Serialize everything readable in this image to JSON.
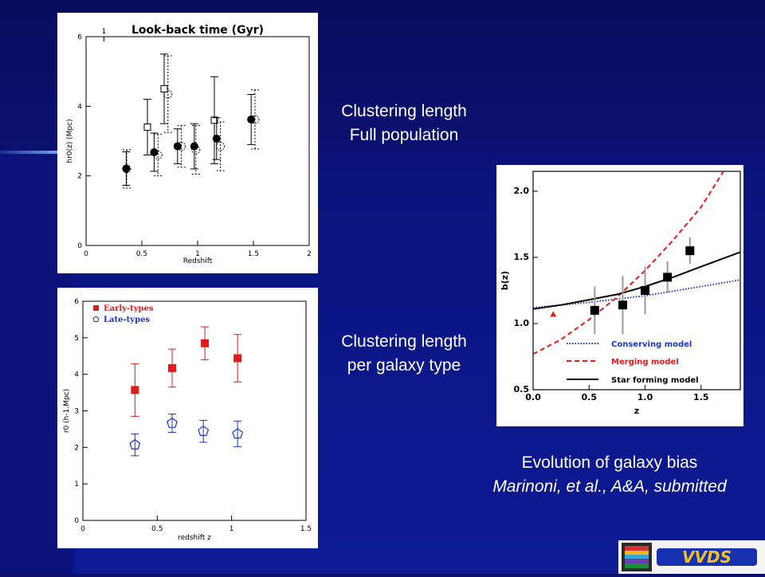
{
  "captions": {
    "full_line1": "Clustering length",
    "full_line2": "Full population",
    "type_line1": "Clustering length",
    "type_line2": "per galaxy type",
    "bias_line1": "Evolution of galaxy bias",
    "bias_line2": "Marinoni, et al., A&A, submitted"
  },
  "logo_text": "VVDS",
  "chart_data": [
    {
      "type": "scatter",
      "title": "Look-back time (Gyr)",
      "top_axis_ticks": [
        "1"
      ],
      "xlabel": "Redshift",
      "ylabel": "hr0(z) (Mpc)",
      "xlim": [
        0,
        2
      ],
      "ylim": [
        0,
        6
      ],
      "xticks": [
        "0",
        "0.5",
        "1",
        "1.5",
        "2"
      ],
      "yticks": [
        "0",
        "2",
        "4",
        "6"
      ],
      "series": [
        {
          "marker": "filled-circle",
          "x": [
            0.36,
            0.61,
            0.82,
            0.97,
            1.17,
            1.48
          ],
          "y": [
            2.21,
            2.68,
            2.85,
            2.85,
            3.07,
            3.62
          ],
          "err": [
            0.48,
            0.55,
            0.5,
            0.65,
            0.6,
            0.72
          ]
        },
        {
          "marker": "open-square",
          "x": [
            0.55,
            0.7,
            1.15
          ],
          "y": [
            3.4,
            4.5,
            3.6
          ],
          "err": [
            0.8,
            1.0,
            1.25
          ]
        },
        {
          "marker": "dotted-circle",
          "x": [
            0.35,
            0.63,
            0.72,
            0.84,
            0.97,
            1.19,
            1.5
          ],
          "y": [
            2.2,
            2.6,
            4.35,
            2.85,
            2.75,
            2.85,
            3.62
          ],
          "err": [
            0.55,
            0.6,
            1.1,
            0.6,
            0.7,
            0.7,
            0.85
          ]
        }
      ]
    },
    {
      "type": "scatter",
      "xlabel": "redshift z",
      "ylabel": "r0 (h-1.Mpc)",
      "xlim": [
        0,
        1.5
      ],
      "ylim": [
        0,
        6
      ],
      "xticks": [
        "0",
        "0.5",
        "1",
        "1.5"
      ],
      "yticks": [
        "0",
        "1",
        "2",
        "3",
        "4",
        "5",
        "6"
      ],
      "series": [
        {
          "name": "Early-types",
          "color": "#e11b1b",
          "marker": "filled-square",
          "x": [
            0.35,
            0.6,
            0.82,
            1.04
          ],
          "y": [
            3.57,
            4.17,
            4.85,
            4.44
          ],
          "err": [
            0.72,
            0.52,
            0.45,
            0.65
          ]
        },
        {
          "name": "Late-types",
          "color": "#1d35c6",
          "marker": "open-pentagon",
          "x": [
            0.35,
            0.6,
            0.81,
            1.04
          ],
          "y": [
            2.07,
            2.66,
            2.44,
            2.37
          ],
          "err": [
            0.3,
            0.25,
            0.3,
            0.35
          ]
        }
      ]
    },
    {
      "type": "line",
      "xlabel": "z",
      "ylabel": "b(z)",
      "xlim": [
        0,
        1.85
      ],
      "ylim": [
        0.5,
        2.15
      ],
      "xticks": [
        "0.0",
        "0.5",
        "1.0",
        "1.5"
      ],
      "yticks": [
        "0.5",
        "1.0",
        "1.5",
        "2.0"
      ],
      "series": [
        {
          "name": "Conserving model",
          "color": "#1d35c6",
          "style": "dotted",
          "x": [
            0,
            0.5,
            1.0,
            1.5,
            1.85
          ],
          "y": [
            1.12,
            1.16,
            1.21,
            1.28,
            1.33
          ]
        },
        {
          "name": "Merging model",
          "color": "#e11b1b",
          "style": "dashed",
          "x": [
            0,
            0.25,
            0.5,
            0.75,
            1.0,
            1.25,
            1.5,
            1.7
          ],
          "y": [
            0.77,
            0.88,
            1.03,
            1.2,
            1.4,
            1.63,
            1.88,
            2.15
          ]
        },
        {
          "name": "Star forming model",
          "color": "#000000",
          "style": "solid",
          "x": [
            0,
            0.25,
            0.5,
            0.75,
            1.0,
            1.25,
            1.5,
            1.85
          ],
          "y": [
            1.11,
            1.14,
            1.18,
            1.22,
            1.28,
            1.35,
            1.43,
            1.54
          ]
        }
      ],
      "points": [
        {
          "marker": "filled-square",
          "color": "#000000",
          "x": [
            0.55,
            0.8,
            1.0,
            1.2,
            1.4
          ],
          "y": [
            1.1,
            1.14,
            1.25,
            1.35,
            1.55
          ],
          "err": [
            0.18,
            0.22,
            0.18,
            0.12,
            0.1
          ]
        },
        {
          "marker": "filled-triangle",
          "color": "#e11b1b",
          "x": [
            0.18
          ],
          "y": [
            1.07
          ],
          "err": [
            0
          ]
        }
      ]
    }
  ]
}
